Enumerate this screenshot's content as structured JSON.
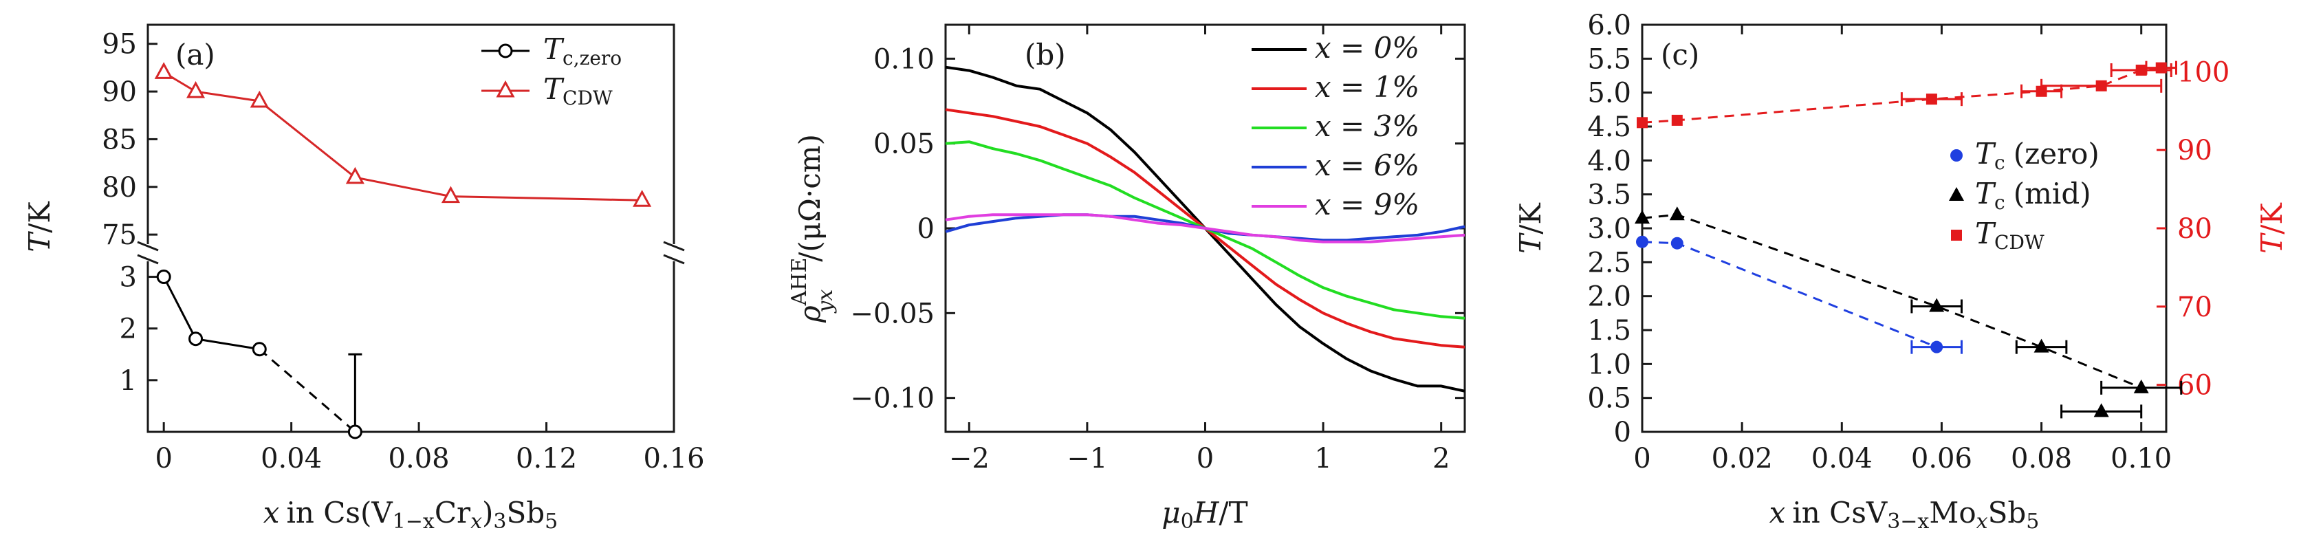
{
  "chart_data": [
    {
      "panel": "(a)",
      "type": "line",
      "xlabel_parts": [
        "x",
        "in Cs(V",
        "1−x",
        "Cr",
        "x",
        ")",
        "3",
        "Sb",
        "5"
      ],
      "ylabel_parts": [
        "T",
        "/K"
      ],
      "xlim": [
        -0.005,
        0.16
      ],
      "xticks": [
        0,
        0.04,
        0.08,
        0.12,
        0.16
      ],
      "xtick_labels": [
        "0",
        "0.04",
        "0.08",
        "0.12",
        "0.16"
      ],
      "upper_ylim": [
        74,
        97
      ],
      "upper_yticks": [
        75,
        80,
        85,
        90,
        95
      ],
      "lower_ylim": [
        0,
        3.3
      ],
      "lower_yticks": [
        1,
        2,
        3
      ],
      "axis_break": true,
      "series": [
        {
          "name": "T_c,zero",
          "legend_main": "T",
          "legend_sub": "c,zero",
          "color": "#000000",
          "marker": "open-circle",
          "x": [
            0,
            0.01,
            0.03,
            0.06
          ],
          "y": [
            3.0,
            1.8,
            1.6,
            0.0
          ],
          "dashed_from_index": 2,
          "error_bars": [
            {
              "x": 0.06,
              "y": 0.0,
              "yerr_up": 1.5
            }
          ]
        },
        {
          "name": "T_CDW",
          "legend_main": "T",
          "legend_sub": "CDW",
          "color": "#d62728",
          "marker": "open-triangle",
          "x": [
            0,
            0.01,
            0.03,
            0.06,
            0.09,
            0.15
          ],
          "y": [
            92,
            90,
            89,
            81,
            79,
            78.6
          ]
        }
      ]
    },
    {
      "panel": "(b)",
      "type": "line",
      "xlabel_parts": [
        "μ",
        "0",
        "H",
        "/T"
      ],
      "ylabel_parts": [
        "ρ",
        "AHE",
        "yx",
        "/(μΩ·cm)"
      ],
      "xlim": [
        -2.2,
        2.2
      ],
      "ylim": [
        -0.12,
        0.12
      ],
      "xticks": [
        -2,
        -1,
        0,
        1,
        2
      ],
      "xtick_labels": [
        "−2",
        "−1",
        "0",
        "1",
        "2"
      ],
      "yticks": [
        -0.1,
        -0.05,
        0,
        0.05,
        0.1
      ],
      "ytick_labels": [
        "−0.10",
        "−0.05",
        "0",
        "0.05",
        "0.10"
      ],
      "series": [
        {
          "name": "x = 0%",
          "color": "#000000",
          "x": [
            -2.2,
            -2.0,
            -1.8,
            -1.6,
            -1.4,
            -1.2,
            -1.0,
            -0.8,
            -0.6,
            -0.4,
            -0.2,
            0,
            0.2,
            0.4,
            0.6,
            0.8,
            1.0,
            1.2,
            1.4,
            1.6,
            1.8,
            2.0,
            2.2
          ],
          "y": [
            0.095,
            0.093,
            0.089,
            0.084,
            0.082,
            0.075,
            0.068,
            0.058,
            0.045,
            0.03,
            0.015,
            0.0,
            -0.015,
            -0.03,
            -0.045,
            -0.058,
            -0.068,
            -0.077,
            -0.084,
            -0.089,
            -0.093,
            -0.093,
            -0.096
          ]
        },
        {
          "name": "x = 1%",
          "color": "#e31a1c",
          "x": [
            -2.2,
            -2.0,
            -1.8,
            -1.6,
            -1.4,
            -1.2,
            -1.0,
            -0.8,
            -0.6,
            -0.4,
            -0.2,
            0,
            0.2,
            0.4,
            0.6,
            0.8,
            1.0,
            1.2,
            1.4,
            1.6,
            1.8,
            2.0,
            2.2
          ],
          "y": [
            0.07,
            0.068,
            0.066,
            0.063,
            0.06,
            0.055,
            0.05,
            0.042,
            0.033,
            0.022,
            0.011,
            0.0,
            -0.011,
            -0.022,
            -0.033,
            -0.042,
            -0.05,
            -0.056,
            -0.061,
            -0.065,
            -0.067,
            -0.069,
            -0.07
          ]
        },
        {
          "name": "x = 3%",
          "color": "#22dd22",
          "x": [
            -2.2,
            -2.0,
            -1.8,
            -1.6,
            -1.4,
            -1.2,
            -1.0,
            -0.8,
            -0.6,
            -0.4,
            -0.2,
            0,
            0.2,
            0.4,
            0.6,
            0.8,
            1.0,
            1.2,
            1.4,
            1.6,
            1.8,
            2.0,
            2.2
          ],
          "y": [
            0.05,
            0.051,
            0.047,
            0.044,
            0.04,
            0.035,
            0.03,
            0.025,
            0.018,
            0.012,
            0.006,
            0.0,
            -0.006,
            -0.012,
            -0.02,
            -0.028,
            -0.035,
            -0.04,
            -0.044,
            -0.048,
            -0.05,
            -0.052,
            -0.053
          ]
        },
        {
          "name": "x = 6%",
          "color": "#1f3fd6",
          "x": [
            -2.2,
            -2.0,
            -1.8,
            -1.6,
            -1.4,
            -1.2,
            -1.0,
            -0.8,
            -0.6,
            -0.4,
            -0.2,
            0,
            0.2,
            0.4,
            0.6,
            0.8,
            1.0,
            1.2,
            1.4,
            1.6,
            1.8,
            2.0,
            2.2
          ],
          "y": [
            -0.002,
            0.002,
            0.004,
            0.006,
            0.007,
            0.008,
            0.008,
            0.007,
            0.007,
            0.005,
            0.003,
            0.0,
            -0.003,
            -0.004,
            -0.005,
            -0.006,
            -0.007,
            -0.007,
            -0.006,
            -0.005,
            -0.004,
            -0.002,
            0.001
          ]
        },
        {
          "name": "x = 9%",
          "color": "#e03ee0",
          "x": [
            -2.2,
            -2.0,
            -1.8,
            -1.6,
            -1.4,
            -1.2,
            -1.0,
            -0.8,
            -0.6,
            -0.4,
            -0.2,
            0,
            0.2,
            0.4,
            0.6,
            0.8,
            1.0,
            1.2,
            1.4,
            1.6,
            1.8,
            2.0,
            2.2
          ],
          "y": [
            0.005,
            0.007,
            0.008,
            0.008,
            0.008,
            0.008,
            0.008,
            0.007,
            0.005,
            0.003,
            0.002,
            0.0,
            -0.002,
            -0.004,
            -0.005,
            -0.007,
            -0.008,
            -0.008,
            -0.008,
            -0.007,
            -0.006,
            -0.005,
            -0.004
          ]
        }
      ]
    },
    {
      "panel": "(c)",
      "type": "scatter",
      "xlabel_parts": [
        "x",
        "in CsV",
        "3−x",
        "Mo",
        "x",
        "Sb",
        "5"
      ],
      "ylabel_left_parts": [
        "T",
        "/K"
      ],
      "ylabel_right_parts": [
        "T",
        "/K"
      ],
      "xlim": [
        0,
        0.105
      ],
      "xticks": [
        0,
        0.02,
        0.04,
        0.06,
        0.08,
        0.1
      ],
      "xtick_labels": [
        "0",
        "0.02",
        "0.04",
        "0.06",
        "0.08",
        "0.10"
      ],
      "ylim_left": [
        0,
        6.0
      ],
      "yticks_left": [
        0,
        0.5,
        1.0,
        1.5,
        2.0,
        2.5,
        3.0,
        3.5,
        4.0,
        4.5,
        5.0,
        5.5,
        6.0
      ],
      "ytick_labels_left": [
        "0",
        "0.5",
        "1.0",
        "1.5",
        "2.0",
        "2.5",
        "3.0",
        "3.5",
        "4.0",
        "4.5",
        "5.0",
        "5.5",
        "6.0"
      ],
      "ylim_right": [
        54,
        106
      ],
      "yticks_right": [
        60,
        70,
        80,
        90,
        100
      ],
      "right_axis_color": "#e31a1c",
      "series": [
        {
          "name": "Tc (zero)",
          "legend_main": "T",
          "legend_sub": "c",
          "legend_suffix": "(zero)",
          "color": "#1f3fe0",
          "marker": "circle",
          "axis": "left",
          "x": [
            0,
            0.007,
            0.059
          ],
          "y": [
            2.8,
            2.78,
            1.25
          ],
          "xerr": [
            0,
            0,
            0.005
          ]
        },
        {
          "name": "Tc (mid)",
          "legend_main": "T",
          "legend_sub": "c",
          "legend_suffix": "(mid)",
          "color": "#000000",
          "marker": "triangle",
          "axis": "left",
          "x": [
            0,
            0.007,
            0.059,
            0.08,
            0.092,
            0.1
          ],
          "y": [
            3.15,
            3.2,
            1.85,
            1.25,
            0.3,
            0.65
          ],
          "xerr": [
            0,
            0,
            0.005,
            0.005,
            0.008,
            0.008
          ]
        },
        {
          "name": "TCDW",
          "legend_main": "T",
          "legend_sub": "CDW",
          "legend_suffix": "",
          "color": "#e31a1c",
          "marker": "square",
          "axis": "right",
          "x": [
            0,
            0.007,
            0.058,
            0.08,
            0.092,
            0.1,
            0.104
          ],
          "y": [
            93.5,
            93.8,
            96.5,
            97.5,
            98.2,
            100.2,
            100.5
          ],
          "xerr": [
            0,
            0,
            0.006,
            0.004,
            0.012,
            0.006,
            0.003
          ]
        }
      ]
    }
  ],
  "labels": {
    "panel_a": "(a)",
    "panel_b": "(b)",
    "panel_c": "(c)"
  },
  "colors": {
    "axis": "#1a1a1a"
  }
}
